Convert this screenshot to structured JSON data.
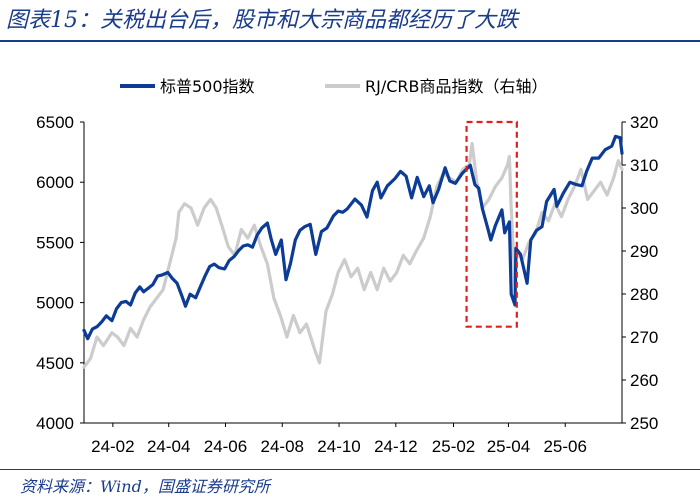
{
  "header": {
    "title": "图表15：关税出台后，股市和大宗商品都经历了大跌"
  },
  "footer": {
    "source": "资料来源：Wind，国盛证券研究所"
  },
  "colors": {
    "spx": "#0d3c96",
    "crb": "#cccccc",
    "highlight": "#e0201b",
    "title": "#1a3c8c"
  },
  "chart_data": {
    "type": "line",
    "x_ticks": [
      "24-02",
      "24-04",
      "24-06",
      "24-08",
      "24-10",
      "24-12",
      "25-02",
      "25-04",
      "25-06"
    ],
    "y_left": {
      "min": 4000,
      "max": 6500,
      "ticks": [
        4000,
        4500,
        5000,
        5500,
        6000,
        6500
      ]
    },
    "y_right": {
      "min": 250,
      "max": 320,
      "ticks": [
        250,
        260,
        270,
        280,
        290,
        300,
        310,
        320
      ]
    },
    "legend_position": "top",
    "highlight_box": {
      "x_start": "2025-02-15",
      "x_end": "2025-04-10",
      "y_low_left": 4800,
      "y_high_left": 6500
    },
    "series": [
      {
        "name": "标普500指数",
        "axis": "left",
        "points": [
          [
            "2024-01-01",
            4770
          ],
          [
            "2024-01-05",
            4700
          ],
          [
            "2024-01-10",
            4780
          ],
          [
            "2024-01-15",
            4800
          ],
          [
            "2024-01-20",
            4840
          ],
          [
            "2024-01-25",
            4890
          ],
          [
            "2024-01-31",
            4850
          ],
          [
            "2024-02-05",
            4950
          ],
          [
            "2024-02-10",
            5000
          ],
          [
            "2024-02-15",
            5010
          ],
          [
            "2024-02-20",
            4980
          ],
          [
            "2024-02-25",
            5080
          ],
          [
            "2024-03-01",
            5130
          ],
          [
            "2024-03-05",
            5090
          ],
          [
            "2024-03-10",
            5120
          ],
          [
            "2024-03-15",
            5150
          ],
          [
            "2024-03-20",
            5220
          ],
          [
            "2024-03-25",
            5230
          ],
          [
            "2024-03-31",
            5250
          ],
          [
            "2024-04-05",
            5200
          ],
          [
            "2024-04-10",
            5160
          ],
          [
            "2024-04-15",
            5060
          ],
          [
            "2024-04-19",
            4970
          ],
          [
            "2024-04-24",
            5070
          ],
          [
            "2024-04-30",
            5040
          ],
          [
            "2024-05-05",
            5130
          ],
          [
            "2024-05-10",
            5220
          ],
          [
            "2024-05-15",
            5300
          ],
          [
            "2024-05-20",
            5320
          ],
          [
            "2024-05-25",
            5290
          ],
          [
            "2024-05-31",
            5280
          ],
          [
            "2024-06-05",
            5350
          ],
          [
            "2024-06-10",
            5380
          ],
          [
            "2024-06-15",
            5430
          ],
          [
            "2024-06-20",
            5470
          ],
          [
            "2024-06-25",
            5480
          ],
          [
            "2024-06-30",
            5460
          ],
          [
            "2024-07-05",
            5560
          ],
          [
            "2024-07-10",
            5620
          ],
          [
            "2024-07-16",
            5660
          ],
          [
            "2024-07-20",
            5530
          ],
          [
            "2024-07-25",
            5400
          ],
          [
            "2024-07-31",
            5520
          ],
          [
            "2024-08-05",
            5190
          ],
          [
            "2024-08-10",
            5330
          ],
          [
            "2024-08-15",
            5520
          ],
          [
            "2024-08-20",
            5600
          ],
          [
            "2024-08-25",
            5630
          ],
          [
            "2024-08-31",
            5650
          ],
          [
            "2024-09-06",
            5400
          ],
          [
            "2024-09-12",
            5590
          ],
          [
            "2024-09-18",
            5620
          ],
          [
            "2024-09-25",
            5720
          ],
          [
            "2024-09-30",
            5760
          ],
          [
            "2024-10-05",
            5750
          ],
          [
            "2024-10-10",
            5780
          ],
          [
            "2024-10-18",
            5860
          ],
          [
            "2024-10-25",
            5810
          ],
          [
            "2024-10-31",
            5710
          ],
          [
            "2024-11-06",
            5930
          ],
          [
            "2024-11-11",
            6000
          ],
          [
            "2024-11-15",
            5870
          ],
          [
            "2024-11-22",
            5970
          ],
          [
            "2024-11-30",
            6030
          ],
          [
            "2024-12-06",
            6090
          ],
          [
            "2024-12-12",
            6050
          ],
          [
            "2024-12-18",
            5870
          ],
          [
            "2024-12-24",
            6040
          ],
          [
            "2024-12-31",
            5880
          ],
          [
            "2025-01-06",
            5970
          ],
          [
            "2025-01-10",
            5830
          ],
          [
            "2025-01-16",
            5940
          ],
          [
            "2025-01-23",
            6120
          ],
          [
            "2025-01-28",
            6010
          ],
          [
            "2025-02-03",
            5990
          ],
          [
            "2025-02-10",
            6070
          ],
          [
            "2025-02-19",
            6140
          ],
          [
            "2025-02-24",
            5980
          ],
          [
            "2025-02-28",
            5950
          ],
          [
            "2025-03-04",
            5780
          ],
          [
            "2025-03-10",
            5610
          ],
          [
            "2025-03-13",
            5520
          ],
          [
            "2025-03-18",
            5640
          ],
          [
            "2025-03-25",
            5770
          ],
          [
            "2025-03-28",
            5580
          ],
          [
            "2025-04-02",
            5670
          ],
          [
            "2025-04-04",
            5070
          ],
          [
            "2025-04-08",
            4980
          ],
          [
            "2025-04-09",
            5450
          ],
          [
            "2025-04-14",
            5400
          ],
          [
            "2025-04-21",
            5160
          ],
          [
            "2025-04-25",
            5520
          ],
          [
            "2025-05-01",
            5600
          ],
          [
            "2025-05-07",
            5630
          ],
          [
            "2025-05-12",
            5840
          ],
          [
            "2025-05-20",
            5940
          ],
          [
            "2025-05-23",
            5800
          ],
          [
            "2025-05-30",
            5910
          ],
          [
            "2025-06-06",
            6000
          ],
          [
            "2025-06-13",
            5980
          ],
          [
            "2025-06-19",
            5970
          ],
          [
            "2025-06-24",
            6090
          ],
          [
            "2025-06-30",
            6200
          ],
          [
            "2025-07-07",
            6200
          ],
          [
            "2025-07-14",
            6270
          ],
          [
            "2025-07-21",
            6300
          ],
          [
            "2025-07-25",
            6380
          ],
          [
            "2025-07-30",
            6370
          ],
          [
            "2025-08-01",
            6240
          ]
        ]
      },
      {
        "name": "RJ/CRB商品指数（右轴）",
        "axis": "right",
        "points": [
          [
            "2024-01-01",
            263
          ],
          [
            "2024-01-08",
            265
          ],
          [
            "2024-01-15",
            270
          ],
          [
            "2024-01-22",
            268
          ],
          [
            "2024-01-31",
            271
          ],
          [
            "2024-02-06",
            270
          ],
          [
            "2024-02-13",
            268
          ],
          [
            "2024-02-20",
            272
          ],
          [
            "2024-02-27",
            270
          ],
          [
            "2024-03-05",
            274
          ],
          [
            "2024-03-12",
            277
          ],
          [
            "2024-03-19",
            279
          ],
          [
            "2024-03-26",
            281
          ],
          [
            "2024-04-02",
            287
          ],
          [
            "2024-04-09",
            293
          ],
          [
            "2024-04-12",
            299
          ],
          [
            "2024-04-18",
            301
          ],
          [
            "2024-04-25",
            300
          ],
          [
            "2024-05-02",
            296
          ],
          [
            "2024-05-09",
            300
          ],
          [
            "2024-05-16",
            302
          ],
          [
            "2024-05-22",
            300
          ],
          [
            "2024-05-28",
            296
          ],
          [
            "2024-06-04",
            291
          ],
          [
            "2024-06-11",
            289
          ],
          [
            "2024-06-18",
            295
          ],
          [
            "2024-06-25",
            293
          ],
          [
            "2024-07-02",
            296
          ],
          [
            "2024-07-09",
            291
          ],
          [
            "2024-07-16",
            287
          ],
          [
            "2024-07-23",
            279
          ],
          [
            "2024-07-30",
            275
          ],
          [
            "2024-08-06",
            270
          ],
          [
            "2024-08-13",
            275
          ],
          [
            "2024-08-20",
            271
          ],
          [
            "2024-08-27",
            273
          ],
          [
            "2024-09-05",
            267
          ],
          [
            "2024-09-10",
            264
          ],
          [
            "2024-09-17",
            276
          ],
          [
            "2024-09-24",
            280
          ],
          [
            "2024-09-30",
            285
          ],
          [
            "2024-10-07",
            288
          ],
          [
            "2024-10-14",
            284
          ],
          [
            "2024-10-21",
            286
          ],
          [
            "2024-10-28",
            281
          ],
          [
            "2024-11-04",
            285
          ],
          [
            "2024-11-11",
            281
          ],
          [
            "2024-11-18",
            286
          ],
          [
            "2024-11-25",
            283
          ],
          [
            "2024-12-02",
            285
          ],
          [
            "2024-12-09",
            289
          ],
          [
            "2024-12-16",
            287
          ],
          [
            "2024-12-23",
            290
          ],
          [
            "2024-12-31",
            293
          ],
          [
            "2025-01-07",
            298
          ],
          [
            "2025-01-14",
            305
          ],
          [
            "2025-01-21",
            308
          ],
          [
            "2025-01-28",
            307
          ],
          [
            "2025-02-04",
            306
          ],
          [
            "2025-02-11",
            309
          ],
          [
            "2025-02-18",
            310
          ],
          [
            "2025-02-21",
            315
          ],
          [
            "2025-02-26",
            306
          ],
          [
            "2025-03-04",
            300
          ],
          [
            "2025-03-11",
            302
          ],
          [
            "2025-03-18",
            305
          ],
          [
            "2025-03-25",
            307
          ],
          [
            "2025-03-31",
            310
          ],
          [
            "2025-04-02",
            312
          ],
          [
            "2025-04-04",
            300
          ],
          [
            "2025-04-08",
            282
          ],
          [
            "2025-04-10",
            290
          ],
          [
            "2025-04-16",
            288
          ],
          [
            "2025-04-23",
            292
          ],
          [
            "2025-04-30",
            294
          ],
          [
            "2025-05-07",
            299
          ],
          [
            "2025-05-14",
            297
          ],
          [
            "2025-05-21",
            301
          ],
          [
            "2025-05-28",
            298
          ],
          [
            "2025-06-04",
            302
          ],
          [
            "2025-06-11",
            305
          ],
          [
            "2025-06-18",
            309
          ],
          [
            "2025-06-25",
            302
          ],
          [
            "2025-07-02",
            304
          ],
          [
            "2025-07-09",
            306
          ],
          [
            "2025-07-16",
            303
          ],
          [
            "2025-07-23",
            307
          ],
          [
            "2025-07-28",
            311
          ],
          [
            "2025-08-01",
            309
          ]
        ]
      }
    ]
  }
}
